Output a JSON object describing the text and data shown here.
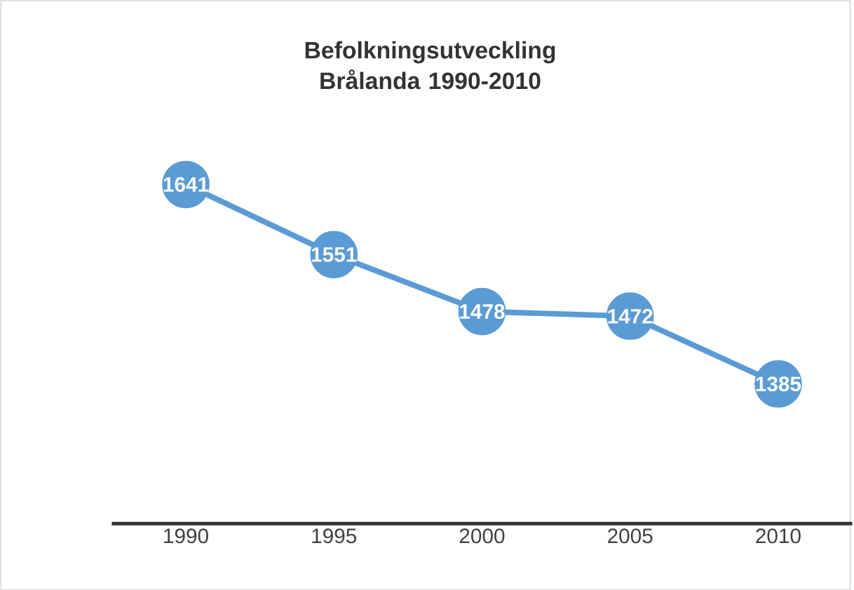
{
  "chart_data": {
    "type": "line",
    "title": "Befolkningsutveckling Brålanda 1990-2010",
    "categories": [
      "1990",
      "1995",
      "2000",
      "2005",
      "2010"
    ],
    "series": [
      {
        "color": "#5b9bd5",
        "values": [
          1641,
          1551,
          1478,
          1472,
          1385
        ]
      }
    ],
    "marker": "circle",
    "line_style": "solid",
    "data_labels": true
  }
}
